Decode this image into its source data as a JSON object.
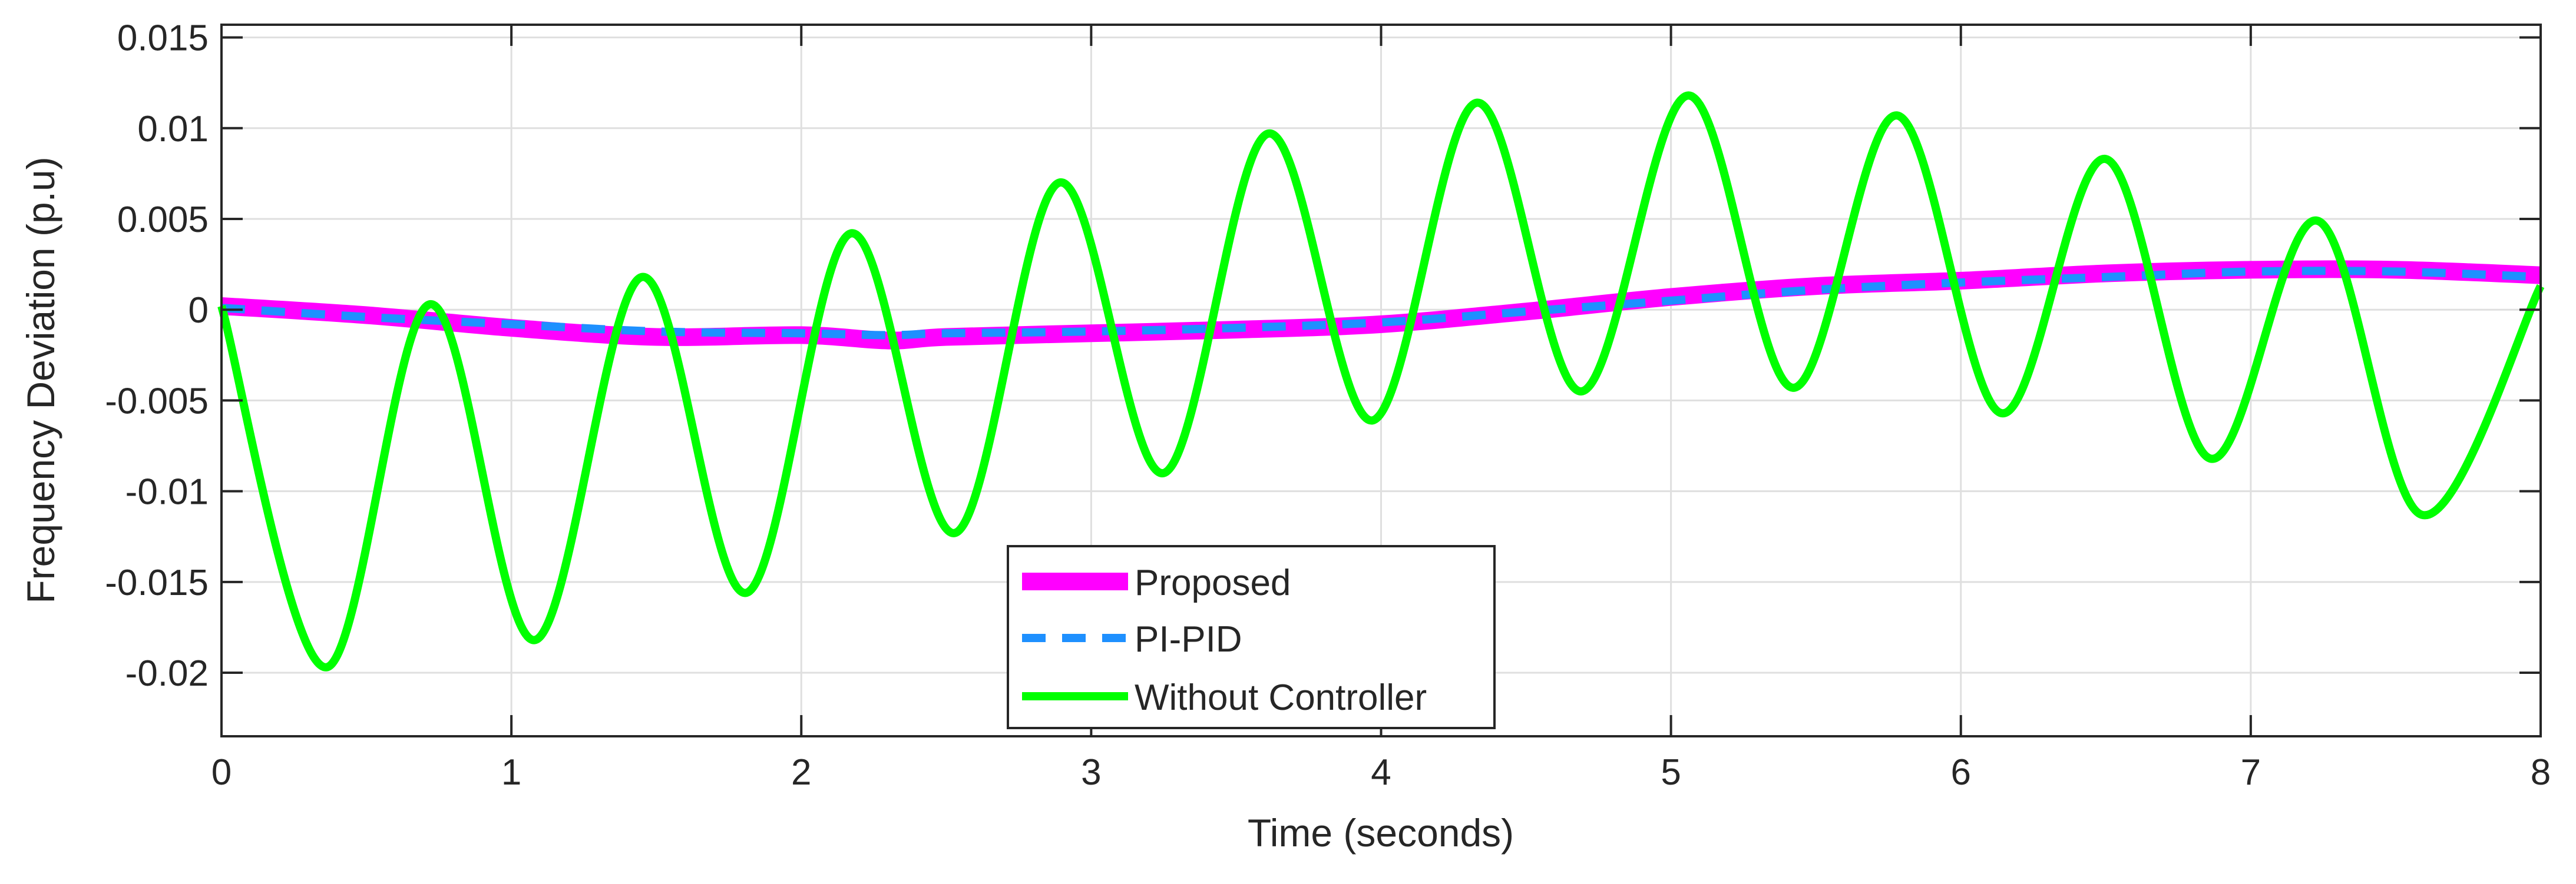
{
  "chart_data": {
    "type": "line",
    "title": "",
    "xlabel": "Time (seconds)",
    "ylabel": "Frequency Deviation (p.u)",
    "xlim": [
      0,
      8
    ],
    "ylim": [
      -0.0235,
      0.0157
    ],
    "xticks": [
      0,
      1,
      2,
      3,
      4,
      5,
      6,
      7,
      8
    ],
    "xtick_labels": [
      "0",
      "1",
      "2",
      "3",
      "4",
      "5",
      "6",
      "7",
      "8"
    ],
    "yticks": [
      0.015,
      0.01,
      0.005,
      0,
      -0.005,
      -0.01,
      -0.015,
      -0.02
    ],
    "ytick_labels": [
      "0.015",
      "0.01",
      "0.005",
      "0",
      "-0.005",
      "-0.01",
      "-0.015",
      "-0.02"
    ],
    "grid": true,
    "legend": {
      "placement": "bottom-center",
      "entries": [
        "Proposed",
        "PI-PID",
        "Without Controller"
      ]
    },
    "series": [
      {
        "name": "Proposed",
        "color": "#ff00ff",
        "style": "solid-thick",
        "x": [
          0,
          0.5,
          1.0,
          1.5,
          2.0,
          2.3,
          2.5,
          3.0,
          3.5,
          4.0,
          4.5,
          5.0,
          5.5,
          6.0,
          6.5,
          7.0,
          7.5,
          8.0
        ],
        "y": [
          0.0002,
          -0.0003,
          -0.001,
          -0.0015,
          -0.0014,
          -0.0017,
          -0.0015,
          -0.0013,
          -0.0011,
          -0.0008,
          -0.0001,
          0.0007,
          0.0013,
          0.0016,
          0.002,
          0.0022,
          0.0022,
          0.0019
        ]
      },
      {
        "name": "PI-PID",
        "color": "#1e90ff",
        "style": "dashed",
        "x": [
          0,
          0.5,
          1.0,
          1.5,
          2.0,
          2.3,
          2.5,
          3.0,
          3.5,
          4.0,
          4.5,
          5.0,
          5.5,
          6.0,
          6.5,
          7.0,
          7.5,
          8.0
        ],
        "y": [
          0.0001,
          -0.0004,
          -0.0008,
          -0.0012,
          -0.0013,
          -0.0014,
          -0.0013,
          -0.0012,
          -0.001,
          -0.0007,
          -0.0001,
          0.0005,
          0.0011,
          0.0015,
          0.0018,
          0.0021,
          0.0021,
          0.0018
        ]
      },
      {
        "name": "Without Controller",
        "color": "#00ff00",
        "style": "solid",
        "x": [
          0,
          0.36,
          0.72,
          1.08,
          1.45,
          1.81,
          2.17,
          2.53,
          2.89,
          3.25,
          3.61,
          3.97,
          4.33,
          4.69,
          5.06,
          5.42,
          5.78,
          6.14,
          6.5,
          6.86,
          7.23,
          7.59,
          8.0
        ],
        "y": [
          0.0002,
          -0.0197,
          0.0003,
          -0.0182,
          0.0018,
          -0.0156,
          0.0042,
          -0.0123,
          0.007,
          -0.009,
          0.0097,
          -0.0061,
          0.0114,
          -0.0045,
          0.0118,
          -0.0043,
          0.0107,
          -0.0057,
          0.0083,
          -0.0082,
          0.0049,
          -0.0113,
          0.0013
        ]
      }
    ]
  }
}
